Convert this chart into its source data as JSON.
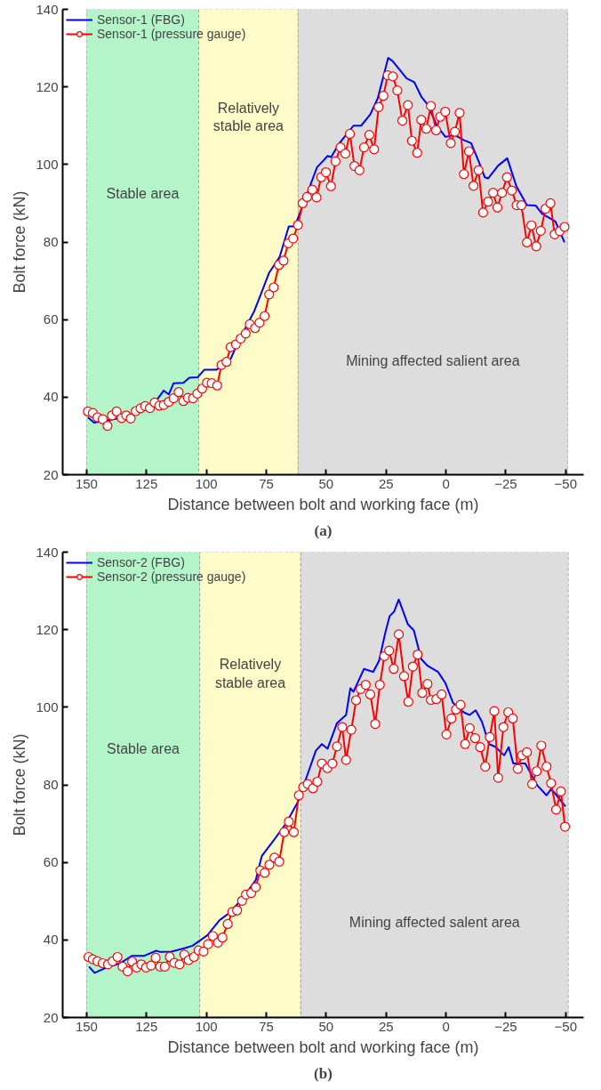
{
  "chart_data": [
    {
      "type": "line",
      "xlabel": "Distance between bolt and working face (m)",
      "ylabel": "Bolt force (kN)",
      "annotations": [
        "(a)"
      ],
      "xlim": [
        160,
        -57.5
      ],
      "ylim": [
        20,
        140
      ],
      "xticks": [
        150,
        125,
        100,
        75,
        50,
        25,
        0,
        -25,
        -50
      ],
      "yticks": [
        20,
        40,
        60,
        80,
        100,
        120,
        140
      ],
      "grid": false,
      "legend": "top left",
      "bands": [
        {
          "axis": "x",
          "from": 150,
          "to": 103.2,
          "label": "Stable area",
          "color": "#b3f5c9"
        },
        {
          "axis": "x",
          "from": 103.2,
          "to": 61.7,
          "label": "Relatively stable area",
          "color": "#fdfbc8"
        },
        {
          "axis": "x",
          "from": 61.7,
          "to": -50.8,
          "label": "Mining affected salient area",
          "color": "#dddddd"
        }
      ],
      "series": [
        {
          "name": "Sensor-1 (FBG)",
          "color": "#0000ff",
          "marker": "none",
          "x": [
            149.5,
            146.9,
            131.6,
            121.0,
            117.8,
            115.7,
            113.7,
            109.6,
            107.1,
            103.7,
            100.8,
            95.7,
            89.9,
            87.0,
            80.1,
            76.9,
            73.8,
            69.4,
            65.6,
            63.1,
            59.3,
            56.3,
            53.8,
            51.3,
            49.4,
            47.9,
            44.8,
            41.7,
            38.6,
            35.4,
            31.6,
            28.5,
            24.1,
            22.2,
            16.4,
            13.2,
            10.1,
            7.6,
            3.8,
            0.2,
            -3.6,
            -7.4,
            -10.5,
            -13.6,
            -16.2,
            -17.6,
            -21.8,
            -25.6,
            -29.4,
            -33.8,
            -37.5,
            -40.1,
            -45.7,
            -49.5
          ],
          "values": [
            34.8,
            33.4,
            35.1,
            39.0,
            41.7,
            40.7,
            43.6,
            43.7,
            45.0,
            45.1,
            47.1,
            47.1,
            49.8,
            53.9,
            62.1,
            67.1,
            72.1,
            76.2,
            84.0,
            84.0,
            90.2,
            95.2,
            99.3,
            100.9,
            102.2,
            101.9,
            105.2,
            107.6,
            110.0,
            110.0,
            112.9,
            117.0,
            127.5,
            126.6,
            122.2,
            121.2,
            117.3,
            115.4,
            110.0,
            107.1,
            107.6,
            106.3,
            105.5,
            100.9,
            96.7,
            96.4,
            99.7,
            101.6,
            94.4,
            89.5,
            89.4,
            87.3,
            85.3,
            79.9
          ]
        },
        {
          "name": "Sensor-1 (pressure gauge)",
          "color": "#ff0000",
          "marker": "circle",
          "x": [
            149.5,
            147.4,
            145.5,
            143.3,
            141.3,
            139.4,
            137.5,
            135.4,
            133.5,
            131.6,
            129.5,
            127.5,
            125.6,
            123.6,
            121.6,
            119.7,
            117.8,
            115.7,
            113.7,
            111.6,
            109.6,
            107.7,
            105.6,
            103.8,
            101.8,
            99.8,
            97.8,
            95.5,
            93.7,
            91.6,
            89.9,
            87.7,
            85.7,
            83.6,
            81.9,
            79.7,
            77.8,
            75.7,
            73.8,
            71.9,
            69.7,
            67.8,
            65.8,
            63.8,
            61.8,
            59.8,
            58.0,
            55.8,
            54.0,
            52.1,
            50.1,
            48.0,
            46.1,
            44.0,
            42.0,
            40.1,
            38.2,
            36.1,
            34.2,
            32.0,
            30.0,
            28.1,
            26.1,
            24.3,
            22.2,
            20.3,
            18.2,
            15.9,
            14.2,
            12.0,
            10.3,
            8.2,
            6.3,
            4.1,
            2.4,
            0.3,
            -2.0,
            -3.7,
            -5.7,
            -7.5,
            -9.6,
            -11.5,
            -13.6,
            -15.5,
            -17.6,
            -19.7,
            -21.5,
            -23.4,
            -25.5,
            -27.5,
            -29.5,
            -31.5,
            -33.8,
            -35.7,
            -37.7,
            -39.6,
            -41.6,
            -43.6,
            -45.4,
            -47.5,
            -49.5
          ],
          "values": [
            36.3,
            35.9,
            34.8,
            34.3,
            32.6,
            35.3,
            36.3,
            34.6,
            35.3,
            34.5,
            36.4,
            37.1,
            37.7,
            37.2,
            38.6,
            37.8,
            38.0,
            38.8,
            39.7,
            41.3,
            39.0,
            39.8,
            39.7,
            40.9,
            42.2,
            43.7,
            43.6,
            43.0,
            48.3,
            49.1,
            52.9,
            53.6,
            55.1,
            56.4,
            58.8,
            57.8,
            59.2,
            60.9,
            66.5,
            68.3,
            74.1,
            75.2,
            79.7,
            80.9,
            84.4,
            90.0,
            91.6,
            93.5,
            91.5,
            96.7,
            98.0,
            94.4,
            100.8,
            104.4,
            102.8,
            107.9,
            99.6,
            98.5,
            104.4,
            107.6,
            103.9,
            114.8,
            117.7,
            123.0,
            122.7,
            119.1,
            111.3,
            115.3,
            106.1,
            103.0,
            111.5,
            109.2,
            115.1,
            108.8,
            112.3,
            113.6,
            105.5,
            108.4,
            113.3,
            97.5,
            103.4,
            94.5,
            98.5,
            87.6,
            90.4,
            92.7,
            88.9,
            92.7,
            96.7,
            93.3,
            89.5,
            89.5,
            79.9,
            84.3,
            78.9,
            82.9,
            88.6,
            90.0,
            82.0,
            82.8,
            83.9
          ]
        }
      ]
    },
    {
      "type": "line",
      "xlabel": "Distance between bolt and working face (m)",
      "ylabel": "Bolt force (kN)",
      "annotations": [
        "(b)"
      ],
      "xlim": [
        160,
        -57.5
      ],
      "ylim": [
        20,
        140
      ],
      "xticks": [
        150,
        125,
        100,
        75,
        50,
        25,
        0,
        -25,
        -50
      ],
      "yticks": [
        20,
        40,
        60,
        80,
        100,
        120,
        140
      ],
      "grid": false,
      "legend": "top left",
      "bands": [
        {
          "axis": "x",
          "from": 150,
          "to": 102.8,
          "label": "Stable area",
          "color": "#b3f5c9"
        },
        {
          "axis": "x",
          "from": 102.8,
          "to": 60.6,
          "label": "Relatively stable area",
          "color": "#fdfbc8"
        },
        {
          "axis": "x",
          "from": 60.6,
          "to": -51.1,
          "label": "Mining affected salent area",
          "color": "#dddddd"
        }
      ],
      "series": [
        {
          "name": "Sensor-2 (FBG)",
          "color": "#0000ff",
          "marker": "none",
          "x": [
            149.0,
            146.7,
            142.3,
            136.0,
            131.0,
            125.9,
            121.0,
            119.3,
            114.6,
            109.6,
            105.8,
            99.6,
            94.5,
            90.8,
            85.7,
            79.4,
            76.9,
            71.9,
            66.9,
            61.8,
            58.0,
            54.3,
            51.8,
            49.4,
            45.5,
            41.7,
            39.9,
            38.6,
            34.2,
            30.4,
            27.9,
            25.4,
            23.5,
            21.6,
            19.7,
            15.9,
            13.4,
            10.3,
            7.7,
            3.3,
            0.2,
            -3.0,
            -7.4,
            -9.9,
            -12.4,
            -15.0,
            -18.0,
            -20.6,
            -24.3,
            -26.2,
            -28.1,
            -33.1,
            -38.2,
            -42.0,
            -43.9,
            -46.2,
            -49.9
          ],
          "values": [
            33.1,
            31.5,
            32.7,
            34.0,
            35.9,
            35.9,
            37.2,
            36.9,
            37.0,
            37.8,
            38.5,
            41.2,
            45.1,
            46.8,
            50.1,
            55.4,
            61.6,
            65.7,
            69.9,
            75.6,
            82.3,
            88.8,
            90.5,
            89.3,
            95.9,
            98.0,
            104.9,
            104.0,
            109.9,
            109.1,
            112.0,
            119.0,
            123.5,
            124.7,
            127.8,
            121.4,
            119.8,
            112.4,
            110.7,
            109.1,
            106.2,
            101.1,
            98.7,
            98.0,
            99.2,
            96.3,
            90.5,
            89.8,
            87.6,
            89.7,
            85.5,
            85.5,
            79.8,
            77.3,
            78.9,
            77.3,
            74.4
          ]
        },
        {
          "name": "Sensor-2 (pressure gauge)",
          "color": "#ff0000",
          "marker": "circle",
          "x": [
            149.2,
            147.4,
            145.5,
            143.3,
            141.1,
            139.2,
            137.1,
            135.0,
            132.9,
            131.0,
            129.1,
            127.2,
            125.2,
            123.1,
            121.2,
            119.3,
            117.4,
            115.3,
            113.4,
            111.2,
            109.2,
            107.4,
            105.2,
            103.3,
            101.2,
            99.3,
            97.3,
            95.2,
            93.3,
            91.1,
            89.2,
            87.2,
            85.1,
            83.5,
            81.3,
            79.4,
            77.5,
            75.7,
            73.7,
            71.6,
            69.6,
            67.5,
            65.6,
            63.5,
            61.4,
            59.6,
            57.7,
            55.5,
            53.7,
            51.8,
            49.5,
            47.4,
            45.5,
            43.3,
            41.7,
            39.5,
            37.5,
            35.6,
            33.5,
            31.6,
            29.5,
            27.6,
            25.7,
            23.7,
            21.8,
            19.7,
            17.5,
            15.7,
            13.8,
            11.8,
            9.9,
            7.7,
            6.3,
            4.0,
            1.8,
            -0.2,
            -2.3,
            -4.2,
            -6.1,
            -8.0,
            -9.9,
            -12.2,
            -14.3,
            -16.4,
            -18.3,
            -20.2,
            -21.8,
            -24.0,
            -26.0,
            -27.9,
            -30.0,
            -31.7,
            -33.8,
            -36.0,
            -37.9,
            -39.8,
            -42.0,
            -43.9,
            -46.0,
            -48.0,
            -49.7
          ],
          "values": [
            35.6,
            35.0,
            34.5,
            34.0,
            33.7,
            34.5,
            35.6,
            33.1,
            31.9,
            34.4,
            32.9,
            33.7,
            32.9,
            33.4,
            35.4,
            33.1,
            33.1,
            35.6,
            34.1,
            33.7,
            36.2,
            34.8,
            35.6,
            37.3,
            37.0,
            38.9,
            41.0,
            39.3,
            40.6,
            44.1,
            47.2,
            47.6,
            50.1,
            51.7,
            52.1,
            53.6,
            57.9,
            57.3,
            59.4,
            61.2,
            60.2,
            67.8,
            70.5,
            67.8,
            77.3,
            79.4,
            80.2,
            79.1,
            80.8,
            85.5,
            84.3,
            85.5,
            89.9,
            94.9,
            86.4,
            94.2,
            101.8,
            104.7,
            105.8,
            103.3,
            95.7,
            105.8,
            113.2,
            114.6,
            109.9,
            118.8,
            108.0,
            101.4,
            110.5,
            113.6,
            103.7,
            106.0,
            101.9,
            102.1,
            103.3,
            93.0,
            97.1,
            99.4,
            100.6,
            90.5,
            94.6,
            92.0,
            89.7,
            84.7,
            92.3,
            99.0,
            81.8,
            94.9,
            98.7,
            97.1,
            84.1,
            87.6,
            88.4,
            80.2,
            83.5,
            90.1,
            84.7,
            80.4,
            73.6,
            78.3,
            69.2
          ]
        }
      ]
    }
  ]
}
